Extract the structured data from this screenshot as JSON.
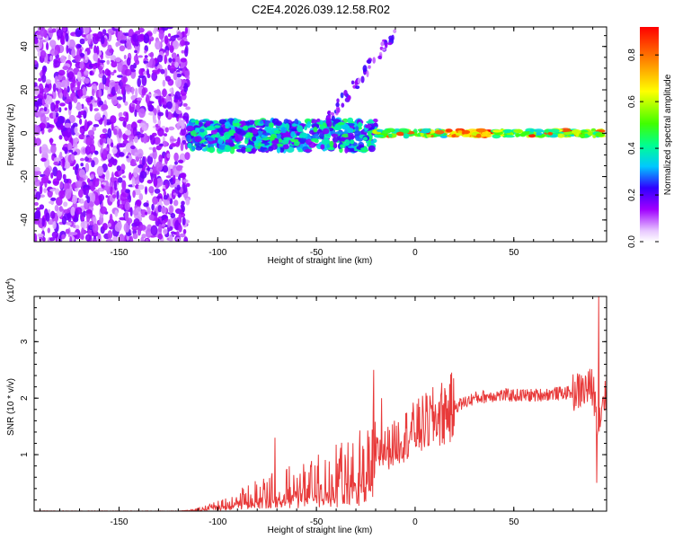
{
  "chart_data": [
    {
      "type": "heatmap",
      "title": "C2E4.2026.039.12.58.R02",
      "xlabel": "Height of straight line (km)",
      "ylabel": "Frequency (Hz)",
      "xlim": [
        -193,
        97
      ],
      "ylim": [
        -50,
        49
      ],
      "xticks": [
        -150,
        -100,
        -50,
        0,
        50
      ],
      "yticks": [
        -40,
        -20,
        0,
        20,
        40
      ],
      "colorbar": {
        "label": "Normalized spectral amplitude",
        "range": [
          0,
          0.92
        ],
        "ticks": [
          "0.0",
          "0.2",
          "0.4",
          "0.6",
          "0.8"
        ],
        "tick_values": [
          0.0,
          0.2,
          0.4,
          0.6,
          0.8
        ]
      },
      "regions": [
        {
          "name": "broadband noise",
          "x_range": [
            -193,
            -115
          ],
          "y_range": [
            -50,
            49
          ],
          "amplitude": 0.15
        },
        {
          "name": "central band",
          "x_range": [
            -115,
            -20
          ],
          "y_range": [
            -8,
            6
          ],
          "amplitude": 0.35
        },
        {
          "name": "tone line",
          "x_range": [
            -20,
            95
          ],
          "y_range": [
            -1.5,
            1.5
          ],
          "amplitude": 0.85
        },
        {
          "name": "rising feature",
          "x_range": [
            -45,
            -10
          ],
          "y_range": [
            5,
            47
          ],
          "amplitude": 0.2
        }
      ]
    },
    {
      "type": "line",
      "title": "",
      "xlabel": "Height of straight line (km)",
      "ylabel": "SNR (10 * v/v)",
      "y_multiplier": "(x10",
      "y_multiplier_exp": "4",
      "y_multiplier_close": ")",
      "xlim": [
        -193,
        97
      ],
      "ylim": [
        0,
        3.8
      ],
      "xticks": [
        -150,
        -100,
        -50,
        0,
        50
      ],
      "yticks": [
        1,
        2,
        3
      ],
      "series": [
        {
          "name": "SNR",
          "color": "#e83a3a",
          "x": [
            -193,
            -150,
            -120,
            -110,
            -100,
            -90,
            -80,
            -70,
            -60,
            -50,
            -40,
            -30,
            -25,
            -20,
            -15,
            -10,
            -5,
            0,
            10,
            20,
            30,
            40,
            50,
            60,
            70,
            80,
            85,
            90,
            93,
            95,
            97
          ],
          "y": [
            0.0,
            0.0,
            0.0,
            0.03,
            0.1,
            0.2,
            0.3,
            0.4,
            0.45,
            0.55,
            0.65,
            0.8,
            0.9,
            1.0,
            1.1,
            1.2,
            1.35,
            1.45,
            1.65,
            1.85,
            2.0,
            2.05,
            2.05,
            2.05,
            2.08,
            2.1,
            2.15,
            2.2,
            1.5,
            2.0,
            2.1
          ],
          "spikes": [
            {
              "x": -71,
              "y": 1.3
            },
            {
              "x": -21,
              "y": 2.5
            },
            {
              "x": -17,
              "y": 2.0
            },
            {
              "x": 93,
              "y": 3.8
            },
            {
              "x": 92,
              "y": 0.5
            }
          ]
        }
      ]
    }
  ]
}
